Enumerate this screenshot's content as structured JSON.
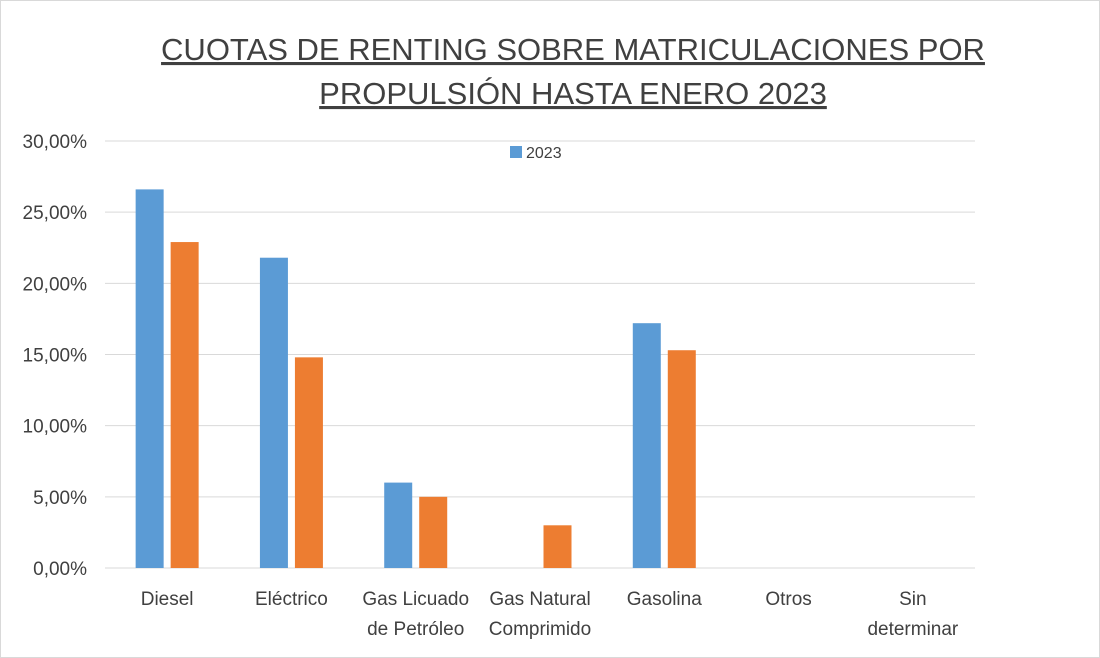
{
  "chart_data": {
    "type": "bar",
    "title_lines": [
      "CUOTAS DE RENTING SOBRE MATRICULACIONES POR",
      "PROPULSIÓN HASTA ENERO 2023"
    ],
    "categories": [
      [
        "Diesel"
      ],
      [
        "Eléctrico"
      ],
      [
        "Gas Licuado",
        "de Petróleo"
      ],
      [
        "Gas Natural",
        "Comprimido"
      ],
      [
        "Gasolina"
      ],
      [
        "Otros"
      ],
      [
        "Sin",
        "determinar"
      ]
    ],
    "series": [
      {
        "name": "2023",
        "color": "#5b9bd5",
        "values": [
          26.6,
          21.8,
          6.0,
          null,
          17.2,
          null,
          null
        ]
      },
      {
        "color": "#ed7d31",
        "values": [
          22.9,
          14.8,
          5.0,
          3.0,
          15.3,
          null,
          null
        ]
      }
    ],
    "ylim": [
      0,
      30
    ],
    "yticks": [
      0,
      5,
      10,
      15,
      20,
      25,
      30
    ],
    "ytick_labels": [
      "0,00%",
      "5,00%",
      "10,00%",
      "15,00%",
      "20,00%",
      "25,00%",
      "30,00%"
    ],
    "grid": true,
    "legend": {
      "placement": "top-center",
      "entries": [
        "2023"
      ]
    }
  }
}
